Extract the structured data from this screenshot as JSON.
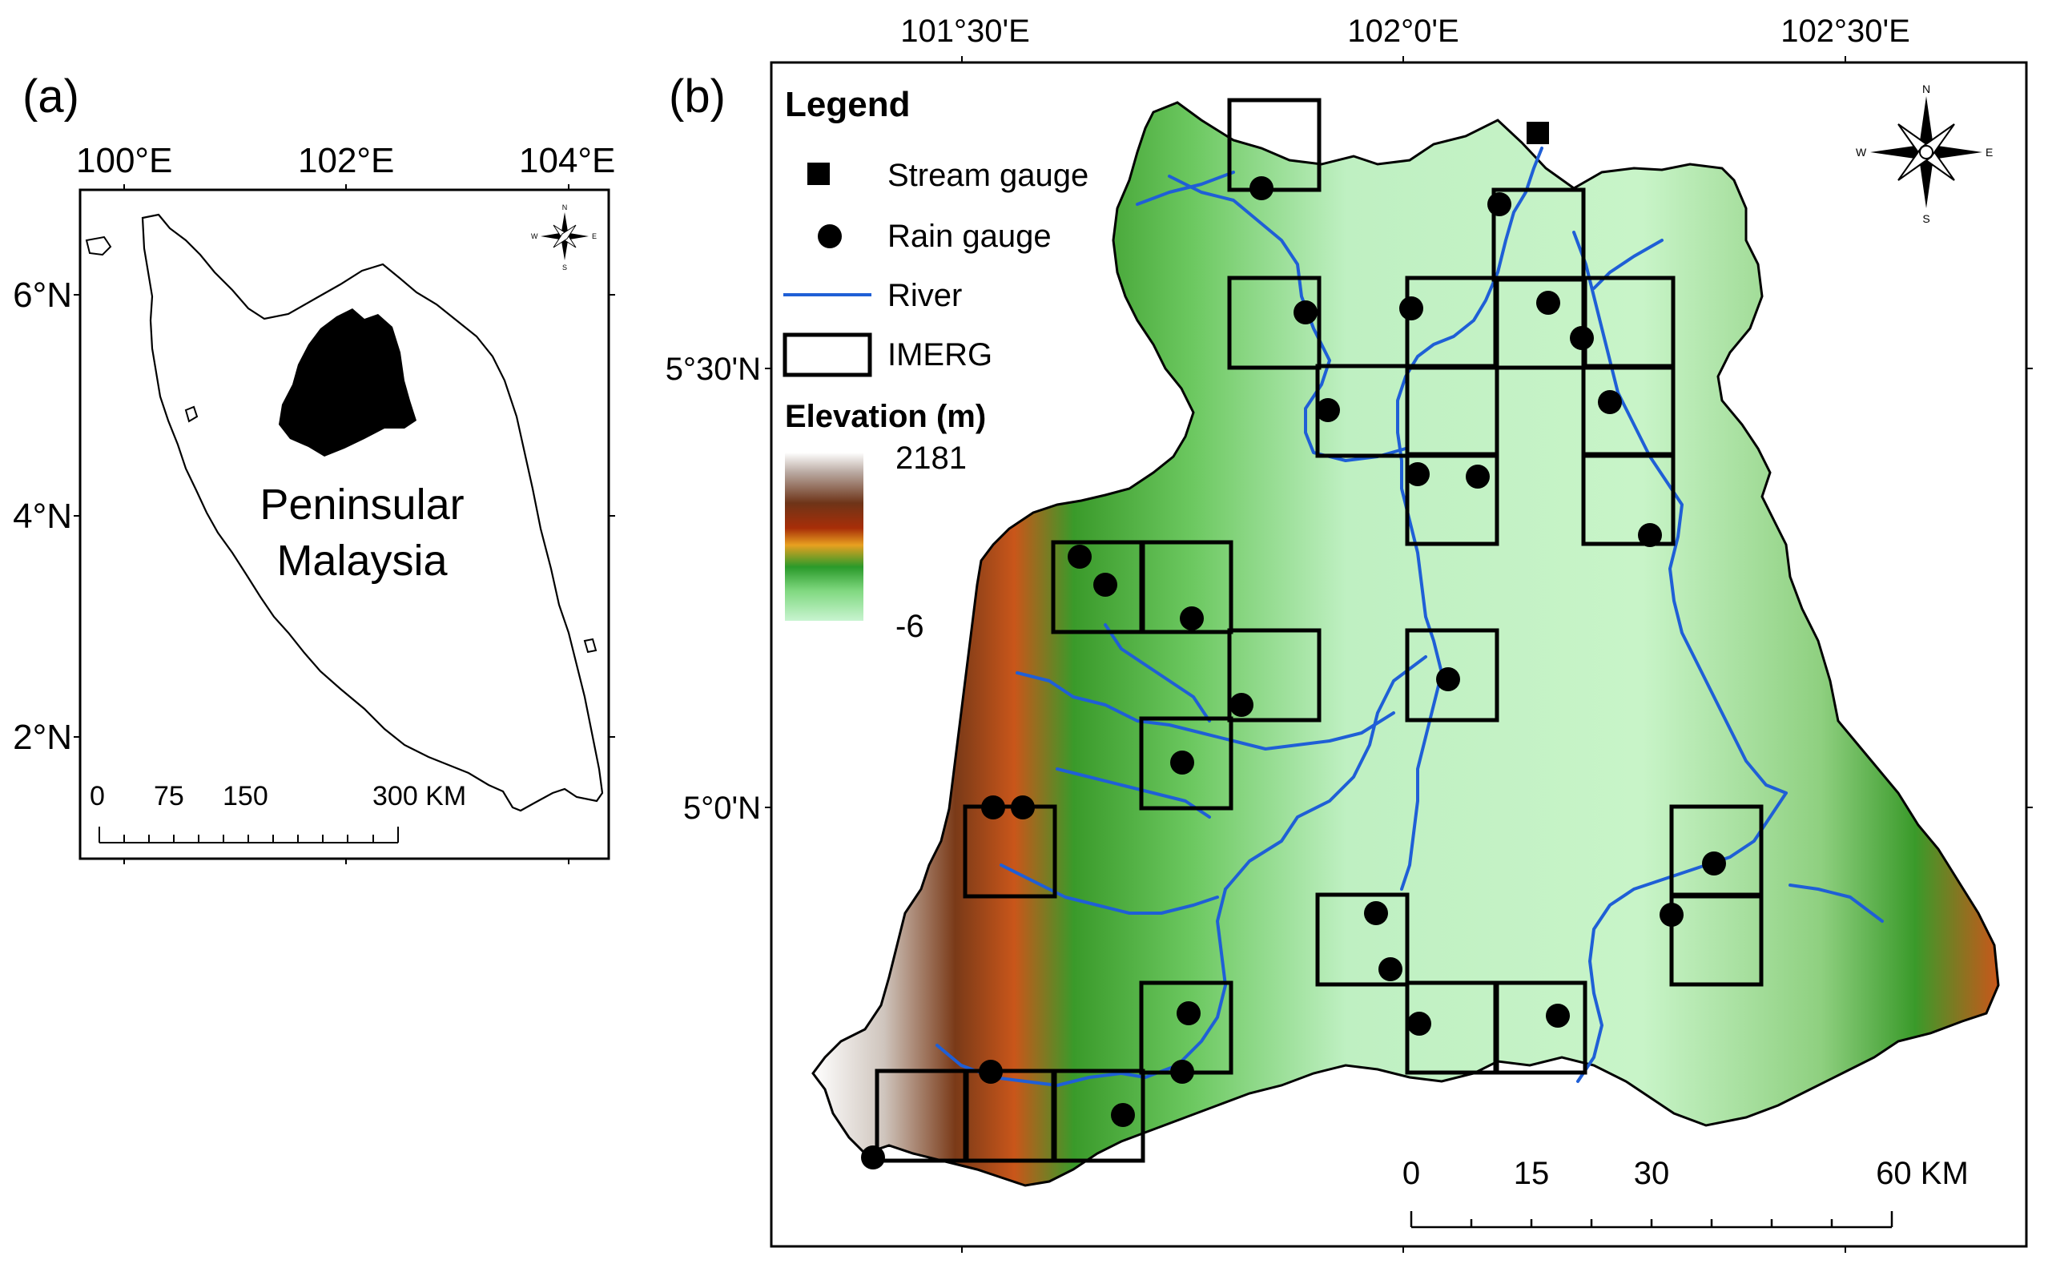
{
  "panel_a": {
    "label": "(a)",
    "lon_labels": [
      "100°E",
      "102°E",
      "104°E"
    ],
    "lat_labels": [
      "6°N",
      "4°N",
      "2°N"
    ],
    "region_label_line1": "Peninsular",
    "region_label_line2": "Malaysia",
    "scale_labels": [
      "0",
      "75",
      "150",
      "300 KM"
    ],
    "compass_letters": {
      "n": "N",
      "s": "S",
      "e": "E",
      "w": "W"
    }
  },
  "panel_b": {
    "label": "(b)",
    "lon_labels": [
      "101°30'E",
      "102°0'E",
      "102°30'E"
    ],
    "lat_labels": [
      "5°30'N",
      "5°0'N"
    ],
    "legend": {
      "title": "Legend",
      "stream_gauge": "Stream gauge",
      "rain_gauge": "Rain gauge",
      "river": "River",
      "imerg": "IMERG",
      "elevation_title": "Elevation (m)",
      "elevation_max": "2181",
      "elevation_min": "-6"
    },
    "scale_labels": [
      "0",
      "15",
      "30",
      "60 KM"
    ],
    "compass_letters": {
      "n": "N",
      "s": "S",
      "e": "E",
      "w": "W"
    },
    "colors": {
      "river": "#1f5fd6",
      "elev_high": "#ffffff",
      "elev_brown": "#7a3a18",
      "elev_orange": "#d55a10",
      "elev_green": "#2e9a2e",
      "elev_light": "#c8f0c0"
    }
  }
}
